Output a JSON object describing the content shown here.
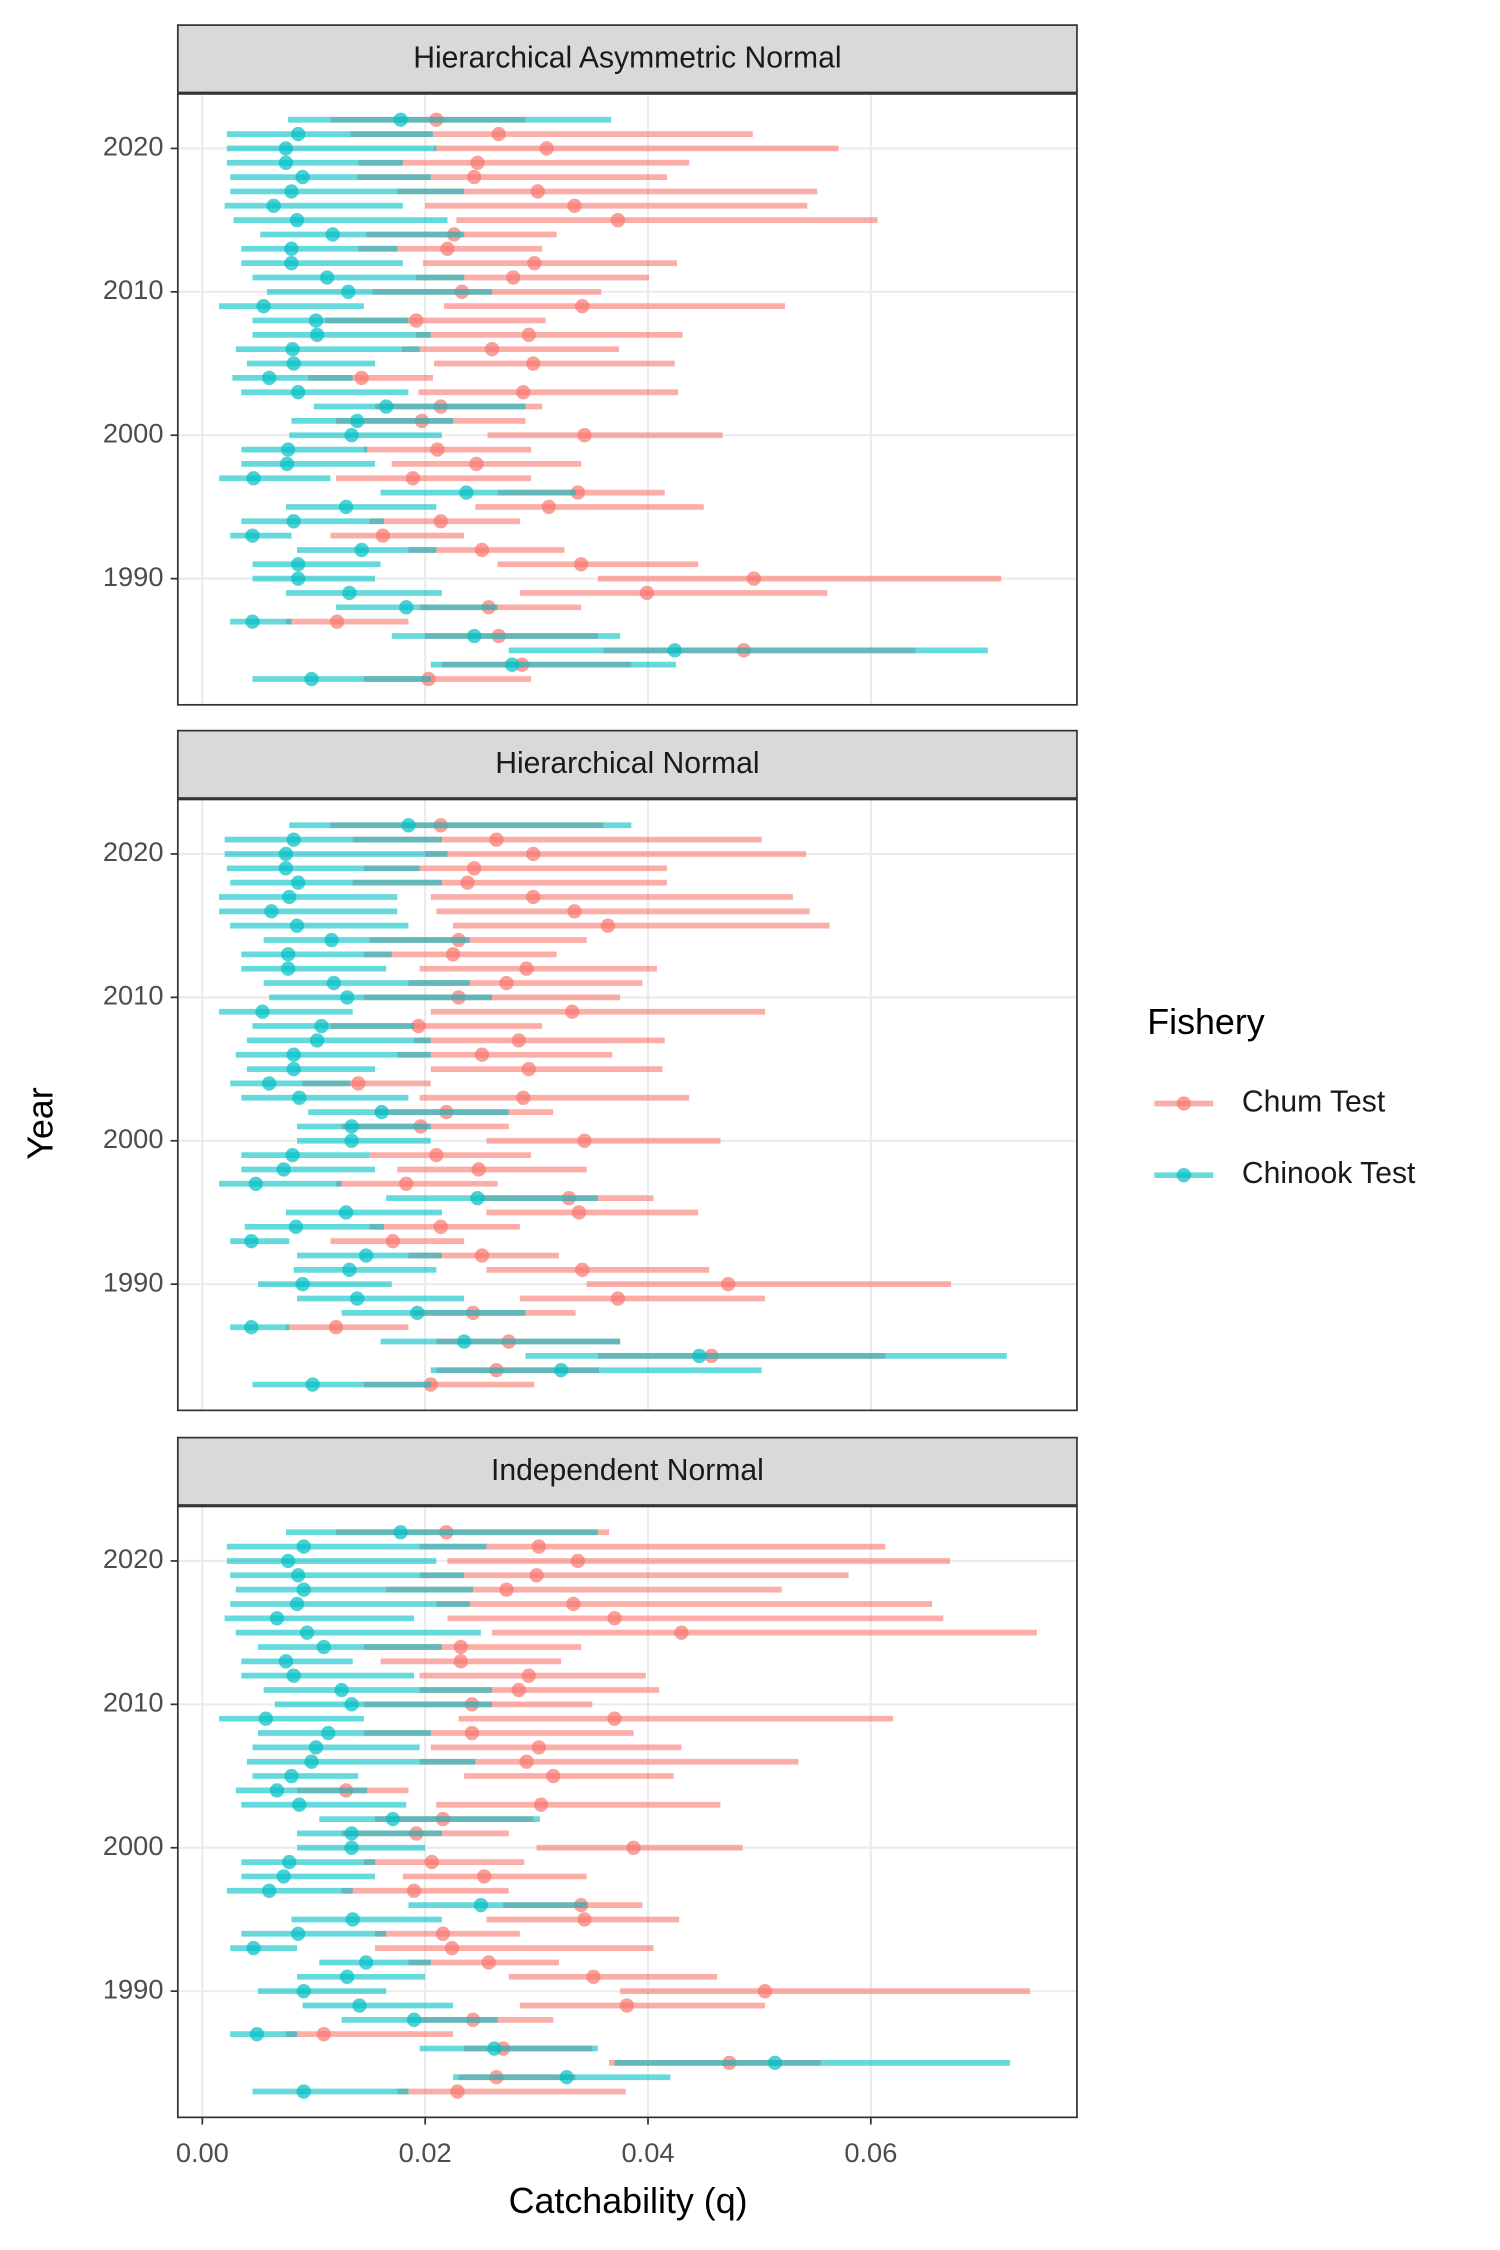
{
  "figure": {
    "xlabel": "Catchability (q)",
    "ylabel": "Year",
    "legend_title": "Fishery",
    "legend_position": "right"
  },
  "chart_data": [
    {
      "type": "errorbar",
      "title": "Hierarchical Asymmetric Normal",
      "years": [
        2022,
        2021,
        2020,
        2019,
        2018,
        2017,
        2016,
        2015,
        2014,
        2013,
        2012,
        2011,
        2010,
        2009,
        2008,
        2007,
        2006,
        2005,
        2004,
        2003,
        2002,
        2001,
        2000,
        1999,
        1998,
        1997,
        1996,
        1995,
        1994,
        1993,
        1992,
        1991,
        1990,
        1989,
        1988,
        1987,
        1986,
        1985,
        1984,
        1983
      ],
      "series": [
        {
          "name": "Chum Test",
          "color": "#F8766D",
          "values": [
            0.021,
            0.0266,
            0.0309,
            0.0247,
            0.0244,
            0.0301,
            0.0334,
            0.0373,
            0.0226,
            0.022,
            0.0298,
            0.0279,
            0.0233,
            0.0341,
            0.0192,
            0.0293,
            0.026,
            0.0297,
            0.0143,
            0.0288,
            0.0214,
            0.0197,
            0.0343,
            0.0211,
            0.0246,
            0.0189,
            0.0337,
            0.0311,
            0.0214,
            0.0162,
            0.0251,
            0.034,
            0.0495,
            0.0399,
            0.0257,
            0.0121,
            0.0266,
            0.0486,
            0.0287,
            0.0203
          ],
          "lower": [
            0.0115,
            0.0133,
            0.0208,
            0.014,
            0.0139,
            0.0175,
            0.02,
            0.0228,
            0.0147,
            0.014,
            0.0198,
            0.0192,
            0.0153,
            0.0217,
            0.011,
            0.0192,
            0.0179,
            0.0208,
            0.0095,
            0.0194,
            0.0155,
            0.012,
            0.0256,
            0.0145,
            0.017,
            0.012,
            0.0265,
            0.0245,
            0.015,
            0.0115,
            0.0185,
            0.0265,
            0.0355,
            0.0285,
            0.0195,
            0.0075,
            0.02,
            0.036,
            0.0215,
            0.0145
          ],
          "upper": [
            0.029,
            0.0494,
            0.0571,
            0.0437,
            0.0417,
            0.0552,
            0.0543,
            0.0606,
            0.0318,
            0.0305,
            0.0426,
            0.0401,
            0.0358,
            0.0523,
            0.0308,
            0.0431,
            0.0374,
            0.0424,
            0.0207,
            0.0427,
            0.0305,
            0.029,
            0.0467,
            0.0295,
            0.034,
            0.0295,
            0.0415,
            0.045,
            0.0285,
            0.0235,
            0.0325,
            0.0445,
            0.0717,
            0.0561,
            0.034,
            0.0185,
            0.0355,
            0.064,
            0.0385,
            0.0295
          ]
        },
        {
          "name": "Chinook Test",
          "color": "#00BFC4",
          "values": [
            0.0178,
            0.0086,
            0.0075,
            0.0075,
            0.009,
            0.008,
            0.0064,
            0.0085,
            0.0117,
            0.008,
            0.008,
            0.0112,
            0.0131,
            0.0055,
            0.0102,
            0.0103,
            0.0081,
            0.0082,
            0.006,
            0.0086,
            0.0165,
            0.0139,
            0.0134,
            0.0077,
            0.0076,
            0.0046,
            0.0237,
            0.0129,
            0.0082,
            0.0045,
            0.0143,
            0.0086,
            0.0086,
            0.0132,
            0.0183,
            0.0045,
            0.0244,
            0.0424,
            0.0278,
            0.0098
          ],
          "lower": [
            0.0077,
            0.0022,
            0.0022,
            0.0022,
            0.0025,
            0.0025,
            0.002,
            0.0028,
            0.0052,
            0.0035,
            0.0035,
            0.0045,
            0.0058,
            0.0015,
            0.0045,
            0.0045,
            0.003,
            0.004,
            0.0027,
            0.0035,
            0.01,
            0.008,
            0.0078,
            0.0035,
            0.0035,
            0.0015,
            0.016,
            0.0075,
            0.0035,
            0.0025,
            0.0085,
            0.0045,
            0.0045,
            0.0075,
            0.012,
            0.0025,
            0.017,
            0.0275,
            0.0205,
            0.0045
          ],
          "upper": [
            0.0367,
            0.0207,
            0.021,
            0.018,
            0.0205,
            0.0235,
            0.018,
            0.022,
            0.0235,
            0.0175,
            0.018,
            0.0235,
            0.026,
            0.0145,
            0.0185,
            0.0205,
            0.0195,
            0.0155,
            0.0135,
            0.0185,
            0.029,
            0.0225,
            0.0215,
            0.0148,
            0.0155,
            0.0115,
            0.0335,
            0.021,
            0.0163,
            0.008,
            0.021,
            0.016,
            0.0155,
            0.0215,
            0.0265,
            0.008,
            0.0375,
            0.0705,
            0.0425,
            0.0205
          ]
        }
      ],
      "xlim": [
        -0.0022,
        0.0785
      ],
      "xticks": [
        0,
        0.02,
        0.04,
        0.06
      ],
      "ylim": [
        1981.2,
        2023.8
      ],
      "yticks": [
        1990,
        2000,
        2010,
        2020
      ],
      "grid": true
    },
    {
      "type": "errorbar",
      "title": "Hierarchical Normal",
      "years": [
        2022,
        2021,
        2020,
        2019,
        2018,
        2017,
        2016,
        2015,
        2014,
        2013,
        2012,
        2011,
        2010,
        2009,
        2008,
        2007,
        2006,
        2005,
        2004,
        2003,
        2002,
        2001,
        2000,
        1999,
        1998,
        1997,
        1996,
        1995,
        1994,
        1993,
        1992,
        1991,
        1990,
        1989,
        1988,
        1987,
        1986,
        1985,
        1984,
        1983
      ],
      "series": [
        {
          "name": "Chum Test",
          "color": "#F8766D",
          "values": [
            0.0214,
            0.0264,
            0.0297,
            0.0244,
            0.0238,
            0.0297,
            0.0334,
            0.0364,
            0.023,
            0.0225,
            0.0291,
            0.0273,
            0.023,
            0.0332,
            0.0194,
            0.0284,
            0.0251,
            0.0293,
            0.014,
            0.0288,
            0.0219,
            0.0196,
            0.0343,
            0.021,
            0.0248,
            0.0183,
            0.0329,
            0.0338,
            0.0214,
            0.0171,
            0.0251,
            0.0341,
            0.0472,
            0.0373,
            0.0243,
            0.012,
            0.0275,
            0.0457,
            0.0264,
            0.0205
          ],
          "lower": [
            0.0115,
            0.0135,
            0.02,
            0.0145,
            0.0135,
            0.0205,
            0.021,
            0.0225,
            0.015,
            0.0145,
            0.0195,
            0.0185,
            0.0145,
            0.0205,
            0.0115,
            0.019,
            0.0175,
            0.0205,
            0.009,
            0.0195,
            0.0155,
            0.0125,
            0.0255,
            0.015,
            0.0175,
            0.012,
            0.025,
            0.0255,
            0.015,
            0.0115,
            0.0185,
            0.0255,
            0.0345,
            0.0285,
            0.019,
            0.0075,
            0.021,
            0.0355,
            0.021,
            0.0145
          ],
          "upper": [
            0.036,
            0.0502,
            0.0542,
            0.0417,
            0.0417,
            0.053,
            0.0545,
            0.0563,
            0.0345,
            0.0318,
            0.0408,
            0.0395,
            0.0375,
            0.0505,
            0.0305,
            0.0415,
            0.0368,
            0.0413,
            0.0205,
            0.0437,
            0.0315,
            0.0275,
            0.0465,
            0.0295,
            0.0345,
            0.0265,
            0.0405,
            0.0445,
            0.0285,
            0.0235,
            0.032,
            0.0455,
            0.0672,
            0.0505,
            0.0335,
            0.0185,
            0.0375,
            0.0613,
            0.0356,
            0.0298
          ]
        },
        {
          "name": "Chinook Test",
          "color": "#00BFC4",
          "values": [
            0.0185,
            0.0082,
            0.0075,
            0.0075,
            0.0086,
            0.0078,
            0.0062,
            0.0085,
            0.0116,
            0.0077,
            0.0077,
            0.0118,
            0.013,
            0.0054,
            0.0107,
            0.0103,
            0.0082,
            0.0082,
            0.006,
            0.0087,
            0.0161,
            0.0134,
            0.0134,
            0.0081,
            0.0073,
            0.0048,
            0.0247,
            0.0129,
            0.0084,
            0.0044,
            0.0147,
            0.0132,
            0.009,
            0.0139,
            0.0193,
            0.0044,
            0.0235,
            0.0446,
            0.0322,
            0.0099
          ],
          "lower": [
            0.0078,
            0.002,
            0.002,
            0.0022,
            0.0025,
            0.0015,
            0.0015,
            0.0025,
            0.0055,
            0.0035,
            0.0035,
            0.0055,
            0.006,
            0.0015,
            0.0045,
            0.004,
            0.003,
            0.004,
            0.0025,
            0.0035,
            0.0095,
            0.0085,
            0.0085,
            0.0035,
            0.0035,
            0.0015,
            0.0165,
            0.0075,
            0.0038,
            0.0025,
            0.0085,
            0.0082,
            0.005,
            0.0085,
            0.0125,
            0.0025,
            0.016,
            0.029,
            0.0205,
            0.0045
          ],
          "upper": [
            0.0385,
            0.0215,
            0.022,
            0.0195,
            0.0215,
            0.0175,
            0.0175,
            0.0185,
            0.024,
            0.017,
            0.0165,
            0.024,
            0.026,
            0.0135,
            0.019,
            0.0205,
            0.0205,
            0.0155,
            0.0133,
            0.0185,
            0.0275,
            0.0205,
            0.0205,
            0.015,
            0.0155,
            0.0125,
            0.0355,
            0.0215,
            0.0163,
            0.0078,
            0.0215,
            0.021,
            0.017,
            0.0235,
            0.029,
            0.0078,
            0.0375,
            0.0722,
            0.0502,
            0.0205
          ]
        }
      ],
      "xlim": [
        -0.0022,
        0.0785
      ],
      "xticks": [
        0,
        0.02,
        0.04,
        0.06
      ],
      "ylim": [
        1981.2,
        2023.8
      ],
      "yticks": [
        1990,
        2000,
        2010,
        2020
      ],
      "grid": true
    },
    {
      "type": "errorbar",
      "title": "Independent Normal",
      "years": [
        2022,
        2021,
        2020,
        2019,
        2018,
        2017,
        2016,
        2015,
        2014,
        2013,
        2012,
        2011,
        2010,
        2009,
        2008,
        2007,
        2006,
        2005,
        2004,
        2003,
        2002,
        2001,
        2000,
        1999,
        1998,
        1997,
        1996,
        1995,
        1994,
        1993,
        1992,
        1991,
        1990,
        1989,
        1988,
        1987,
        1986,
        1985,
        1984,
        1983
      ],
      "series": [
        {
          "name": "Chum Test",
          "color": "#F8766D",
          "values": [
            0.0219,
            0.0302,
            0.0337,
            0.03,
            0.0273,
            0.0333,
            0.037,
            0.043,
            0.0232,
            0.0232,
            0.0293,
            0.0284,
            0.0242,
            0.037,
            0.0242,
            0.0302,
            0.0291,
            0.0315,
            0.0129,
            0.0304,
            0.0216,
            0.0192,
            0.0387,
            0.0206,
            0.0253,
            0.019,
            0.034,
            0.0343,
            0.0216,
            0.0224,
            0.0257,
            0.0351,
            0.0505,
            0.0381,
            0.0243,
            0.0109,
            0.027,
            0.0473,
            0.0264,
            0.0229
          ],
          "lower": [
            0.012,
            0.0195,
            0.022,
            0.0195,
            0.0165,
            0.021,
            0.022,
            0.026,
            0.0145,
            0.016,
            0.0195,
            0.0195,
            0.0145,
            0.023,
            0.0145,
            0.0205,
            0.0195,
            0.0235,
            0.0085,
            0.021,
            0.0155,
            0.0125,
            0.03,
            0.0145,
            0.018,
            0.0125,
            0.027,
            0.0255,
            0.0155,
            0.0155,
            0.0185,
            0.0275,
            0.0375,
            0.0285,
            0.0195,
            0.0075,
            0.0235,
            0.0365,
            0.023,
            0.0175
          ],
          "upper": [
            0.0365,
            0.0613,
            0.0671,
            0.058,
            0.052,
            0.0655,
            0.0665,
            0.0749,
            0.034,
            0.0322,
            0.0398,
            0.041,
            0.035,
            0.062,
            0.0387,
            0.043,
            0.0535,
            0.0423,
            0.0185,
            0.0465,
            0.0297,
            0.0275,
            0.0485,
            0.0289,
            0.0345,
            0.0275,
            0.0395,
            0.0428,
            0.0285,
            0.0405,
            0.032,
            0.0462,
            0.0743,
            0.0505,
            0.0315,
            0.0225,
            0.035,
            0.0555,
            0.0335,
            0.038
          ]
        },
        {
          "name": "Chinook Test",
          "color": "#00BFC4",
          "values": [
            0.0178,
            0.0091,
            0.0077,
            0.0086,
            0.0091,
            0.0085,
            0.0067,
            0.0094,
            0.0109,
            0.0075,
            0.0082,
            0.0125,
            0.0134,
            0.0057,
            0.0113,
            0.0102,
            0.0098,
            0.008,
            0.0067,
            0.0087,
            0.0171,
            0.0134,
            0.0134,
            0.0078,
            0.0073,
            0.006,
            0.025,
            0.0135,
            0.0086,
            0.0046,
            0.0147,
            0.013,
            0.0091,
            0.0141,
            0.019,
            0.0049,
            0.0262,
            0.0514,
            0.0327,
            0.0091
          ],
          "lower": [
            0.0075,
            0.0022,
            0.0022,
            0.0025,
            0.003,
            0.0025,
            0.002,
            0.003,
            0.005,
            0.0035,
            0.0035,
            0.0055,
            0.0065,
            0.0015,
            0.005,
            0.0045,
            0.004,
            0.0045,
            0.003,
            0.0035,
            0.0105,
            0.0085,
            0.0085,
            0.0035,
            0.0035,
            0.0022,
            0.0185,
            0.008,
            0.0035,
            0.0025,
            0.0105,
            0.0085,
            0.005,
            0.009,
            0.0125,
            0.0025,
            0.0195,
            0.037,
            0.0225,
            0.0045
          ],
          "upper": [
            0.0355,
            0.0255,
            0.021,
            0.0235,
            0.0243,
            0.024,
            0.019,
            0.025,
            0.0215,
            0.0135,
            0.019,
            0.026,
            0.026,
            0.0145,
            0.0205,
            0.0195,
            0.0245,
            0.014,
            0.0148,
            0.0183,
            0.0303,
            0.0215,
            0.02,
            0.0155,
            0.0155,
            0.0135,
            0.0345,
            0.0215,
            0.0165,
            0.0085,
            0.0205,
            0.02,
            0.0165,
            0.0225,
            0.0265,
            0.0085,
            0.0355,
            0.0725,
            0.042,
            0.0185
          ]
        }
      ],
      "xlim": [
        -0.0022,
        0.0785
      ],
      "xticks": [
        {
          "value": 0,
          "label": "0.00"
        },
        {
          "value": 0.02,
          "label": "0.02"
        },
        {
          "value": 0.04,
          "label": "0.04"
        },
        {
          "value": 0.06,
          "label": "0.06"
        }
      ],
      "ylim": [
        1981.2,
        2023.8
      ],
      "yticks": [
        1990,
        2000,
        2010,
        2020
      ],
      "grid": true
    }
  ]
}
